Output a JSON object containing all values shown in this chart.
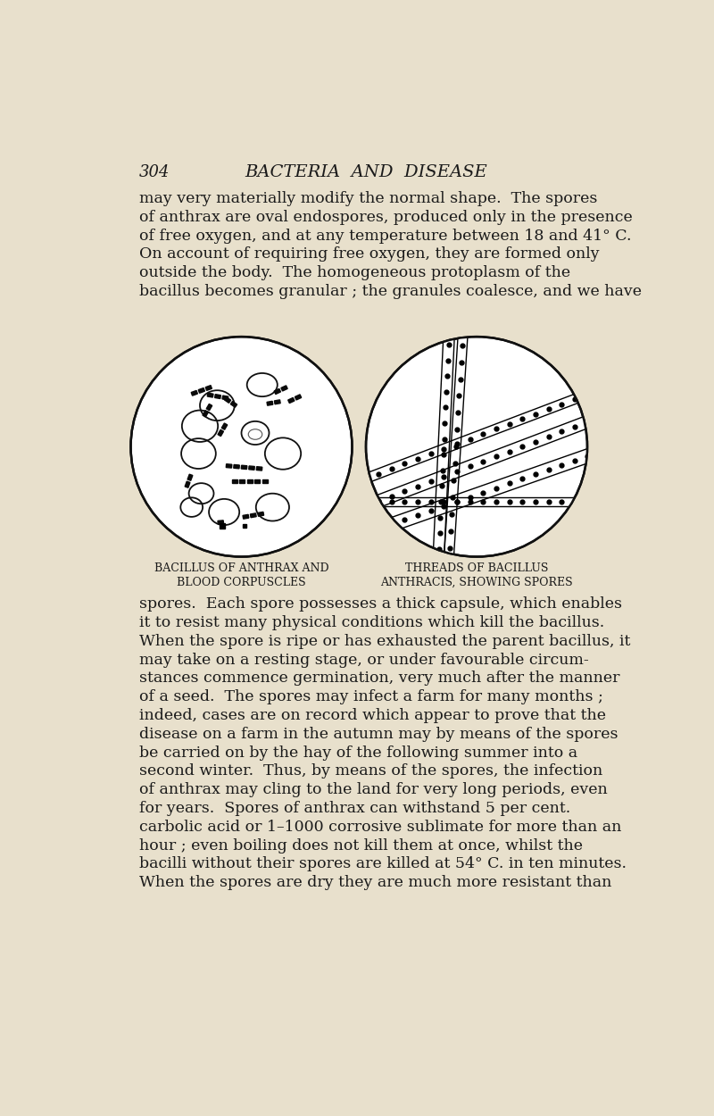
{
  "bg_color": "#e8e0cc",
  "text_color": "#1a1a1a",
  "header_num": "304",
  "header_title": "BACTERIA  AND  DISEASE",
  "para1_lines": [
    "may very materially modify the normal shape.  The spores",
    "of anthrax are oval endospores, produced only in the presence",
    "of free oxygen, and at any temperature between 18 and 41° C.",
    "On account of requiring free oxygen, they are formed only",
    "outside the body.  The homogeneous protoplasm of the",
    "bacillus becomes granular ; the granules coalesce, and we have"
  ],
  "cap_left_line1": "Bacillus of Anthrax and",
  "cap_left_line2": "Blood Corpuscles",
  "cap_right_line1": "Threads of Bacillus",
  "cap_right_line2": "Anthracis, showing Spores",
  "para2_lines": [
    "spores.  Each spore possesses a thick capsule, which enables",
    "it to resist many physical conditions which kill the bacillus.",
    "When the spore is ripe or has exhausted the parent bacillus, it",
    "may take on a resting stage, or under favourable circum-",
    "stances commence germination, very much after the manner",
    "of a seed.  The spores may infect a farm for many months ;",
    "indeed, cases are on record which appear to prove that the",
    "disease on a farm in the autumn may by means of the spores",
    "be carried on by the hay of the following summer into a",
    "second winter.  Thus, by means of the spores, the infection",
    "of anthrax may cling to the land for very long periods, even",
    "for years.  Spores of anthrax can withstand 5 per cent.",
    "carbolic acid or 1–1000 corrosive sublimate for more than an",
    "hour ; even boiling does not kill them at once, whilst the",
    "bacilli without their spores are killed at 54° C. in ten minutes.",
    "When the spores are dry they are much more resistant than"
  ]
}
